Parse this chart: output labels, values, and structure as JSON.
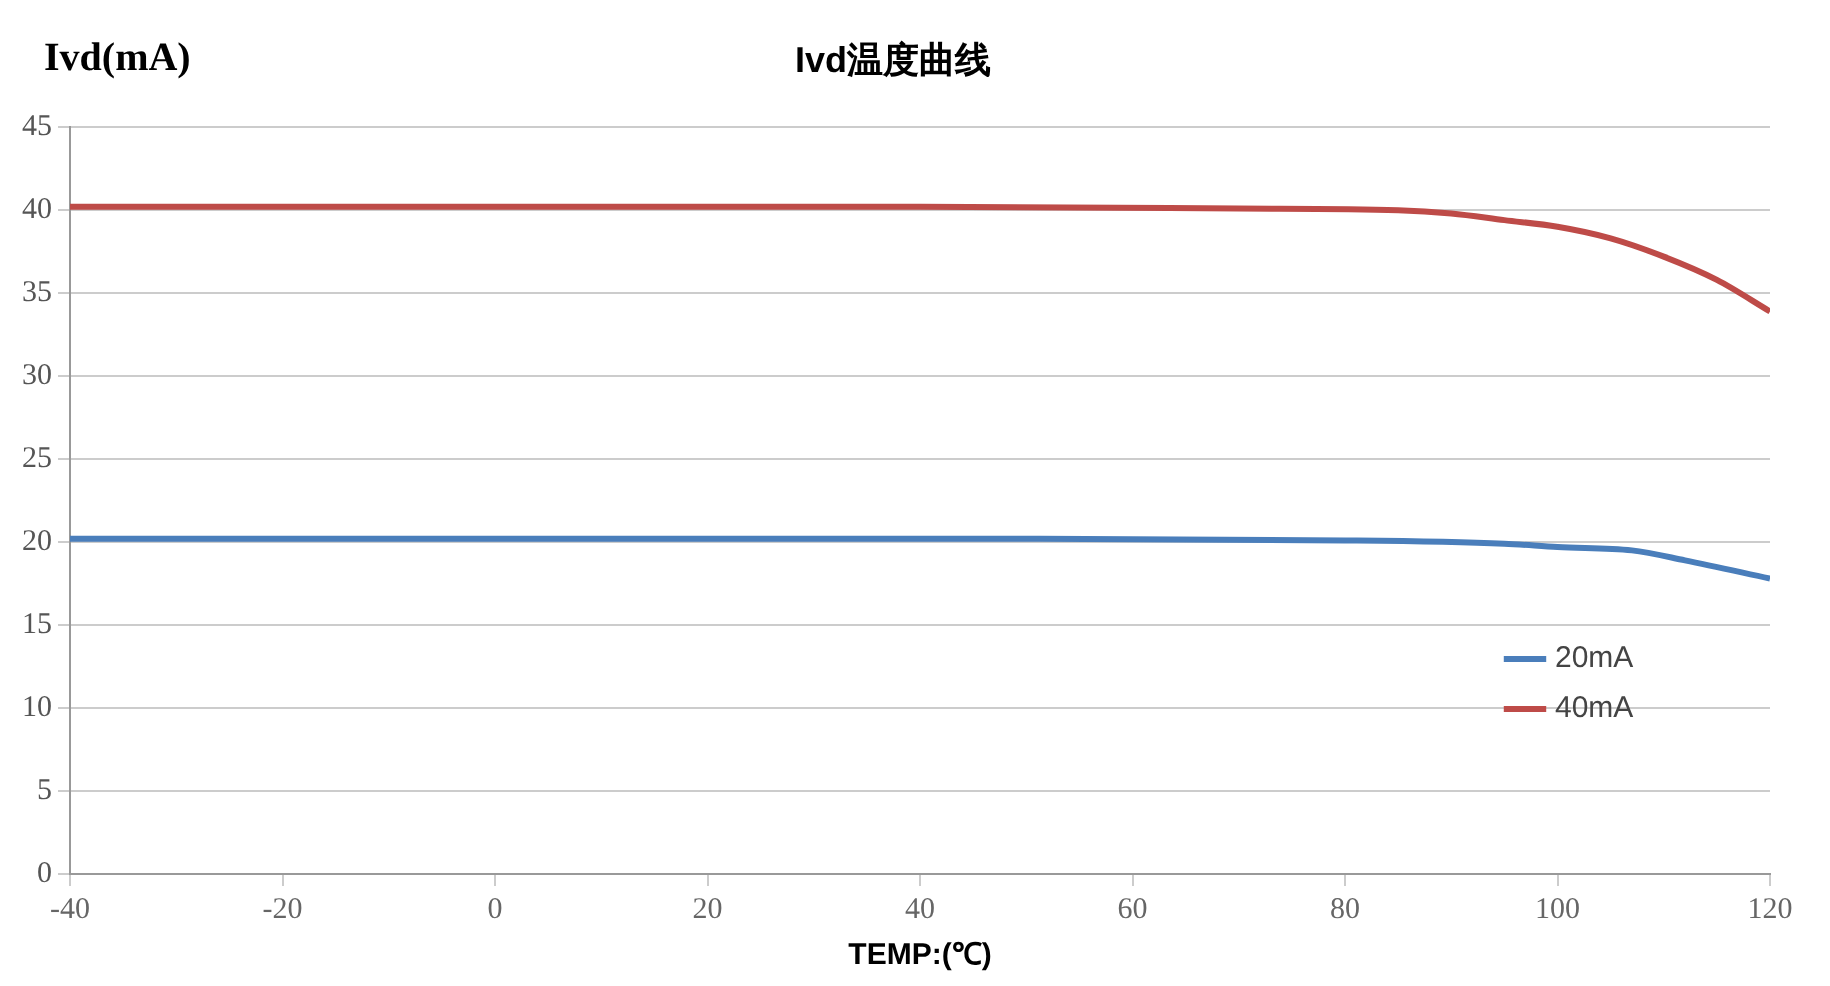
{
  "chart_data": {
    "type": "line",
    "title": "Ivd温度曲线",
    "ylabel": "Ivd(mA)",
    "xlabel": "TEMP:(℃)",
    "xlim": [
      -40,
      120
    ],
    "xticks": [
      -40,
      -20,
      0,
      20,
      40,
      60,
      80,
      100,
      120
    ],
    "ylim": [
      0,
      45
    ],
    "yticks": [
      0,
      5,
      10,
      15,
      20,
      25,
      30,
      35,
      40,
      45
    ],
    "grid": "y",
    "legend": "right",
    "marker": "none",
    "line_style": "solid",
    "series": [
      {
        "name": "20mA",
        "color": "#4a7ebb",
        "x": [
          -40,
          0,
          40,
          80,
          95,
          100,
          107,
          112,
          120
        ],
        "values": [
          20.2,
          20.2,
          20.2,
          20.1,
          19.9,
          19.7,
          19.5,
          18.9,
          17.8
        ]
      },
      {
        "name": "40mA",
        "color": "#be4b48",
        "x": [
          -40,
          0,
          40,
          70,
          85,
          90,
          95,
          100,
          105,
          110,
          115,
          120
        ],
        "values": [
          40.2,
          40.2,
          40.2,
          40.1,
          40,
          39.8,
          39.4,
          39,
          38.3,
          37.2,
          35.8,
          33.9
        ]
      }
    ]
  }
}
